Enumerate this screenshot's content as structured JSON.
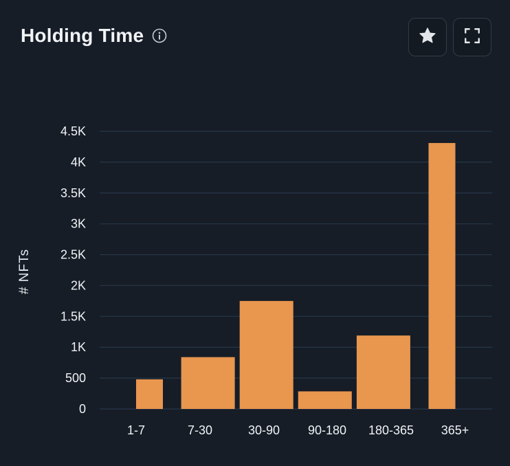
{
  "header": {
    "title": "Holding Time",
    "info_icon": "info-circle-icon",
    "favorite_icon": "star-icon",
    "expand_icon": "expand-icon"
  },
  "colors": {
    "background": "#161d27",
    "bar": "#e9964f",
    "grid": "#263649",
    "text": "#f1f3f5"
  },
  "chart_data": {
    "type": "bar",
    "title": "",
    "xlabel": "",
    "ylabel": "# NFTs",
    "categories": [
      "1-7",
      "7-30",
      "30-90",
      "90-180",
      "180-365",
      "365+"
    ],
    "values": [
      480,
      840,
      1750,
      285,
      1190,
      4310
    ],
    "ylim": [
      0,
      4500
    ],
    "yticks": [
      0,
      500,
      1000,
      1500,
      2000,
      2500,
      3000,
      3500,
      4000,
      4500
    ],
    "ytick_labels": [
      "0",
      "500",
      "1K",
      "1.5K",
      "2K",
      "2.5K",
      "3K",
      "3.5K",
      "4K",
      "4.5K"
    ],
    "grid": true,
    "legend": "none"
  }
}
